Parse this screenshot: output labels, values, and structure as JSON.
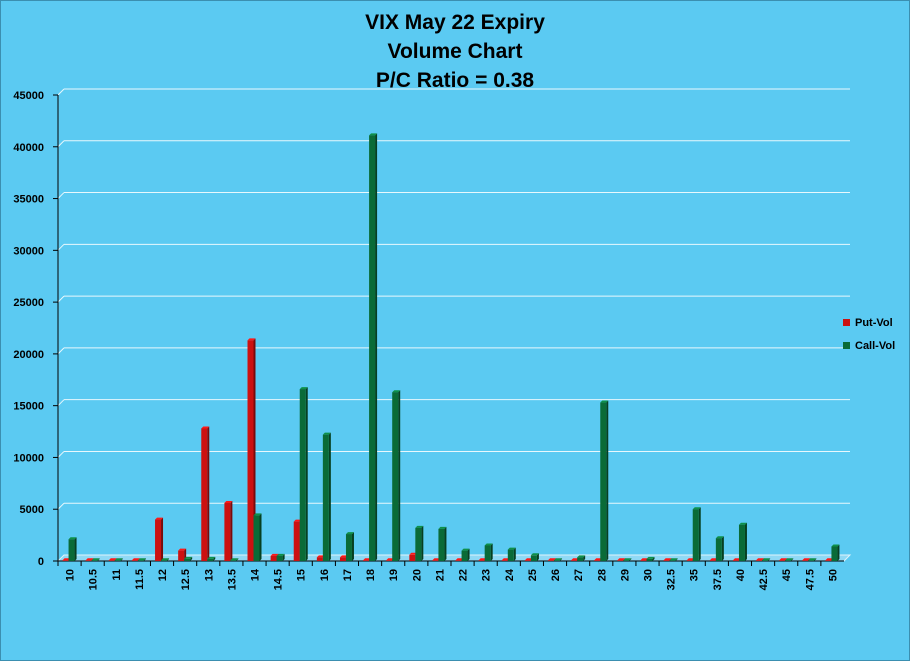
{
  "chart_data": {
    "type": "bar",
    "title_lines": [
      "VIX May 22 Expiry",
      "Volume Chart",
      "P/C Ratio = 0.38"
    ],
    "xlabel": "",
    "ylabel": "",
    "ylim": [
      0,
      45000
    ],
    "yticks": [
      0,
      5000,
      10000,
      15000,
      20000,
      25000,
      30000,
      35000,
      40000,
      45000
    ],
    "grid": true,
    "legend_position": "right",
    "categories": [
      "10",
      "10.5",
      "11",
      "11.5",
      "12",
      "12.5",
      "13",
      "13.5",
      "14",
      "14.5",
      "15",
      "16",
      "17",
      "18",
      "19",
      "20",
      "21",
      "22",
      "23",
      "24",
      "25",
      "26",
      "27",
      "28",
      "29",
      "30",
      "32.5",
      "35",
      "37.5",
      "40",
      "42.5",
      "45",
      "47.5",
      "50"
    ],
    "series": [
      {
        "name": "Put-Vol",
        "color": "#cc1111",
        "values": [
          10,
          0,
          10,
          10,
          4000,
          1000,
          12800,
          5600,
          21300,
          500,
          3800,
          350,
          350,
          0,
          60,
          600,
          30,
          20,
          60,
          20,
          0,
          0,
          0,
          0,
          0,
          0,
          0,
          0,
          0,
          0,
          0,
          0,
          0,
          0
        ]
      },
      {
        "name": "Call-Vol",
        "color": "#0a6b37",
        "values": [
          2100,
          0,
          0,
          0,
          50,
          200,
          200,
          50,
          4400,
          500,
          16600,
          12200,
          2600,
          41100,
          16300,
          3200,
          3100,
          1000,
          1500,
          1100,
          550,
          0,
          350,
          15300,
          0,
          200,
          0,
          5000,
          2200,
          3500,
          0,
          0,
          0,
          1400
        ]
      }
    ]
  }
}
